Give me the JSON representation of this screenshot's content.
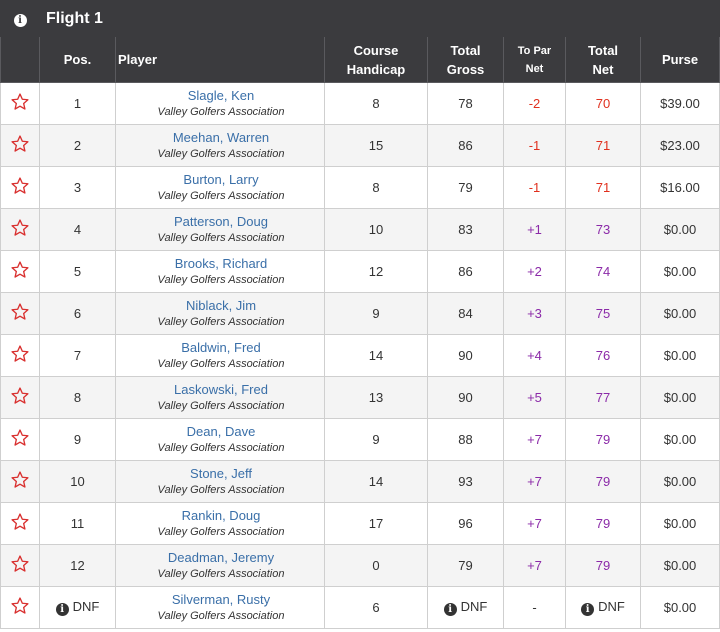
{
  "header": {
    "title": "Flight 1",
    "info_icon": "info-icon"
  },
  "columns": {
    "pos": "Pos.",
    "player": "Player",
    "course_handicap": [
      "Course",
      "Handicap"
    ],
    "total_gross": [
      "Total",
      "Gross"
    ],
    "to_par_net": [
      "To Par",
      "Net"
    ],
    "total_net": [
      "Total",
      "Net"
    ],
    "purse": "Purse"
  },
  "colors": {
    "to_par_negative": "#e0301e",
    "to_par_positive": "#8b2aa8",
    "net_over_par": "#8b2aa8",
    "net_under_par": "#e0301e",
    "player_link": "#3a6fa8",
    "star": "#d9302f"
  },
  "rows": [
    {
      "pos": "1",
      "name": "Slagle, Ken",
      "club": "Valley Golfers Association",
      "hcp": "8",
      "gross": "78",
      "topar": "-2",
      "net": "70",
      "purse": "$39.00"
    },
    {
      "pos": "2",
      "name": "Meehan, Warren",
      "club": "Valley Golfers Association",
      "hcp": "15",
      "gross": "86",
      "topar": "-1",
      "net": "71",
      "purse": "$23.00"
    },
    {
      "pos": "3",
      "name": "Burton, Larry",
      "club": "Valley Golfers Association",
      "hcp": "8",
      "gross": "79",
      "topar": "-1",
      "net": "71",
      "purse": "$16.00"
    },
    {
      "pos": "4",
      "name": "Patterson, Doug",
      "club": "Valley Golfers Association",
      "hcp": "10",
      "gross": "83",
      "topar": "+1",
      "net": "73",
      "purse": "$0.00"
    },
    {
      "pos": "5",
      "name": "Brooks, Richard",
      "club": "Valley Golfers Association",
      "hcp": "12",
      "gross": "86",
      "topar": "+2",
      "net": "74",
      "purse": "$0.00"
    },
    {
      "pos": "6",
      "name": "Niblack, Jim",
      "club": "Valley Golfers Association",
      "hcp": "9",
      "gross": "84",
      "topar": "+3",
      "net": "75",
      "purse": "$0.00"
    },
    {
      "pos": "7",
      "name": "Baldwin, Fred",
      "club": "Valley Golfers Association",
      "hcp": "14",
      "gross": "90",
      "topar": "+4",
      "net": "76",
      "purse": "$0.00"
    },
    {
      "pos": "8",
      "name": "Laskowski, Fred",
      "club": "Valley Golfers Association",
      "hcp": "13",
      "gross": "90",
      "topar": "+5",
      "net": "77",
      "purse": "$0.00"
    },
    {
      "pos": "9",
      "name": "Dean, Dave",
      "club": "Valley Golfers Association",
      "hcp": "9",
      "gross": "88",
      "topar": "+7",
      "net": "79",
      "purse": "$0.00"
    },
    {
      "pos": "10",
      "name": "Stone, Jeff",
      "club": "Valley Golfers Association",
      "hcp": "14",
      "gross": "93",
      "topar": "+7",
      "net": "79",
      "purse": "$0.00"
    },
    {
      "pos": "11",
      "name": "Rankin, Doug",
      "club": "Valley Golfers Association",
      "hcp": "17",
      "gross": "96",
      "topar": "+7",
      "net": "79",
      "purse": "$0.00"
    },
    {
      "pos": "12",
      "name": "Deadman, Jeremy",
      "club": "Valley Golfers Association",
      "hcp": "0",
      "gross": "79",
      "topar": "+7",
      "net": "79",
      "purse": "$0.00"
    },
    {
      "pos": "DNF",
      "name": "Silverman, Rusty",
      "club": "Valley Golfers Association",
      "hcp": "6",
      "gross": "DNF",
      "topar": "-",
      "net": "DNF",
      "purse": "$0.00",
      "dnf": true
    }
  ]
}
